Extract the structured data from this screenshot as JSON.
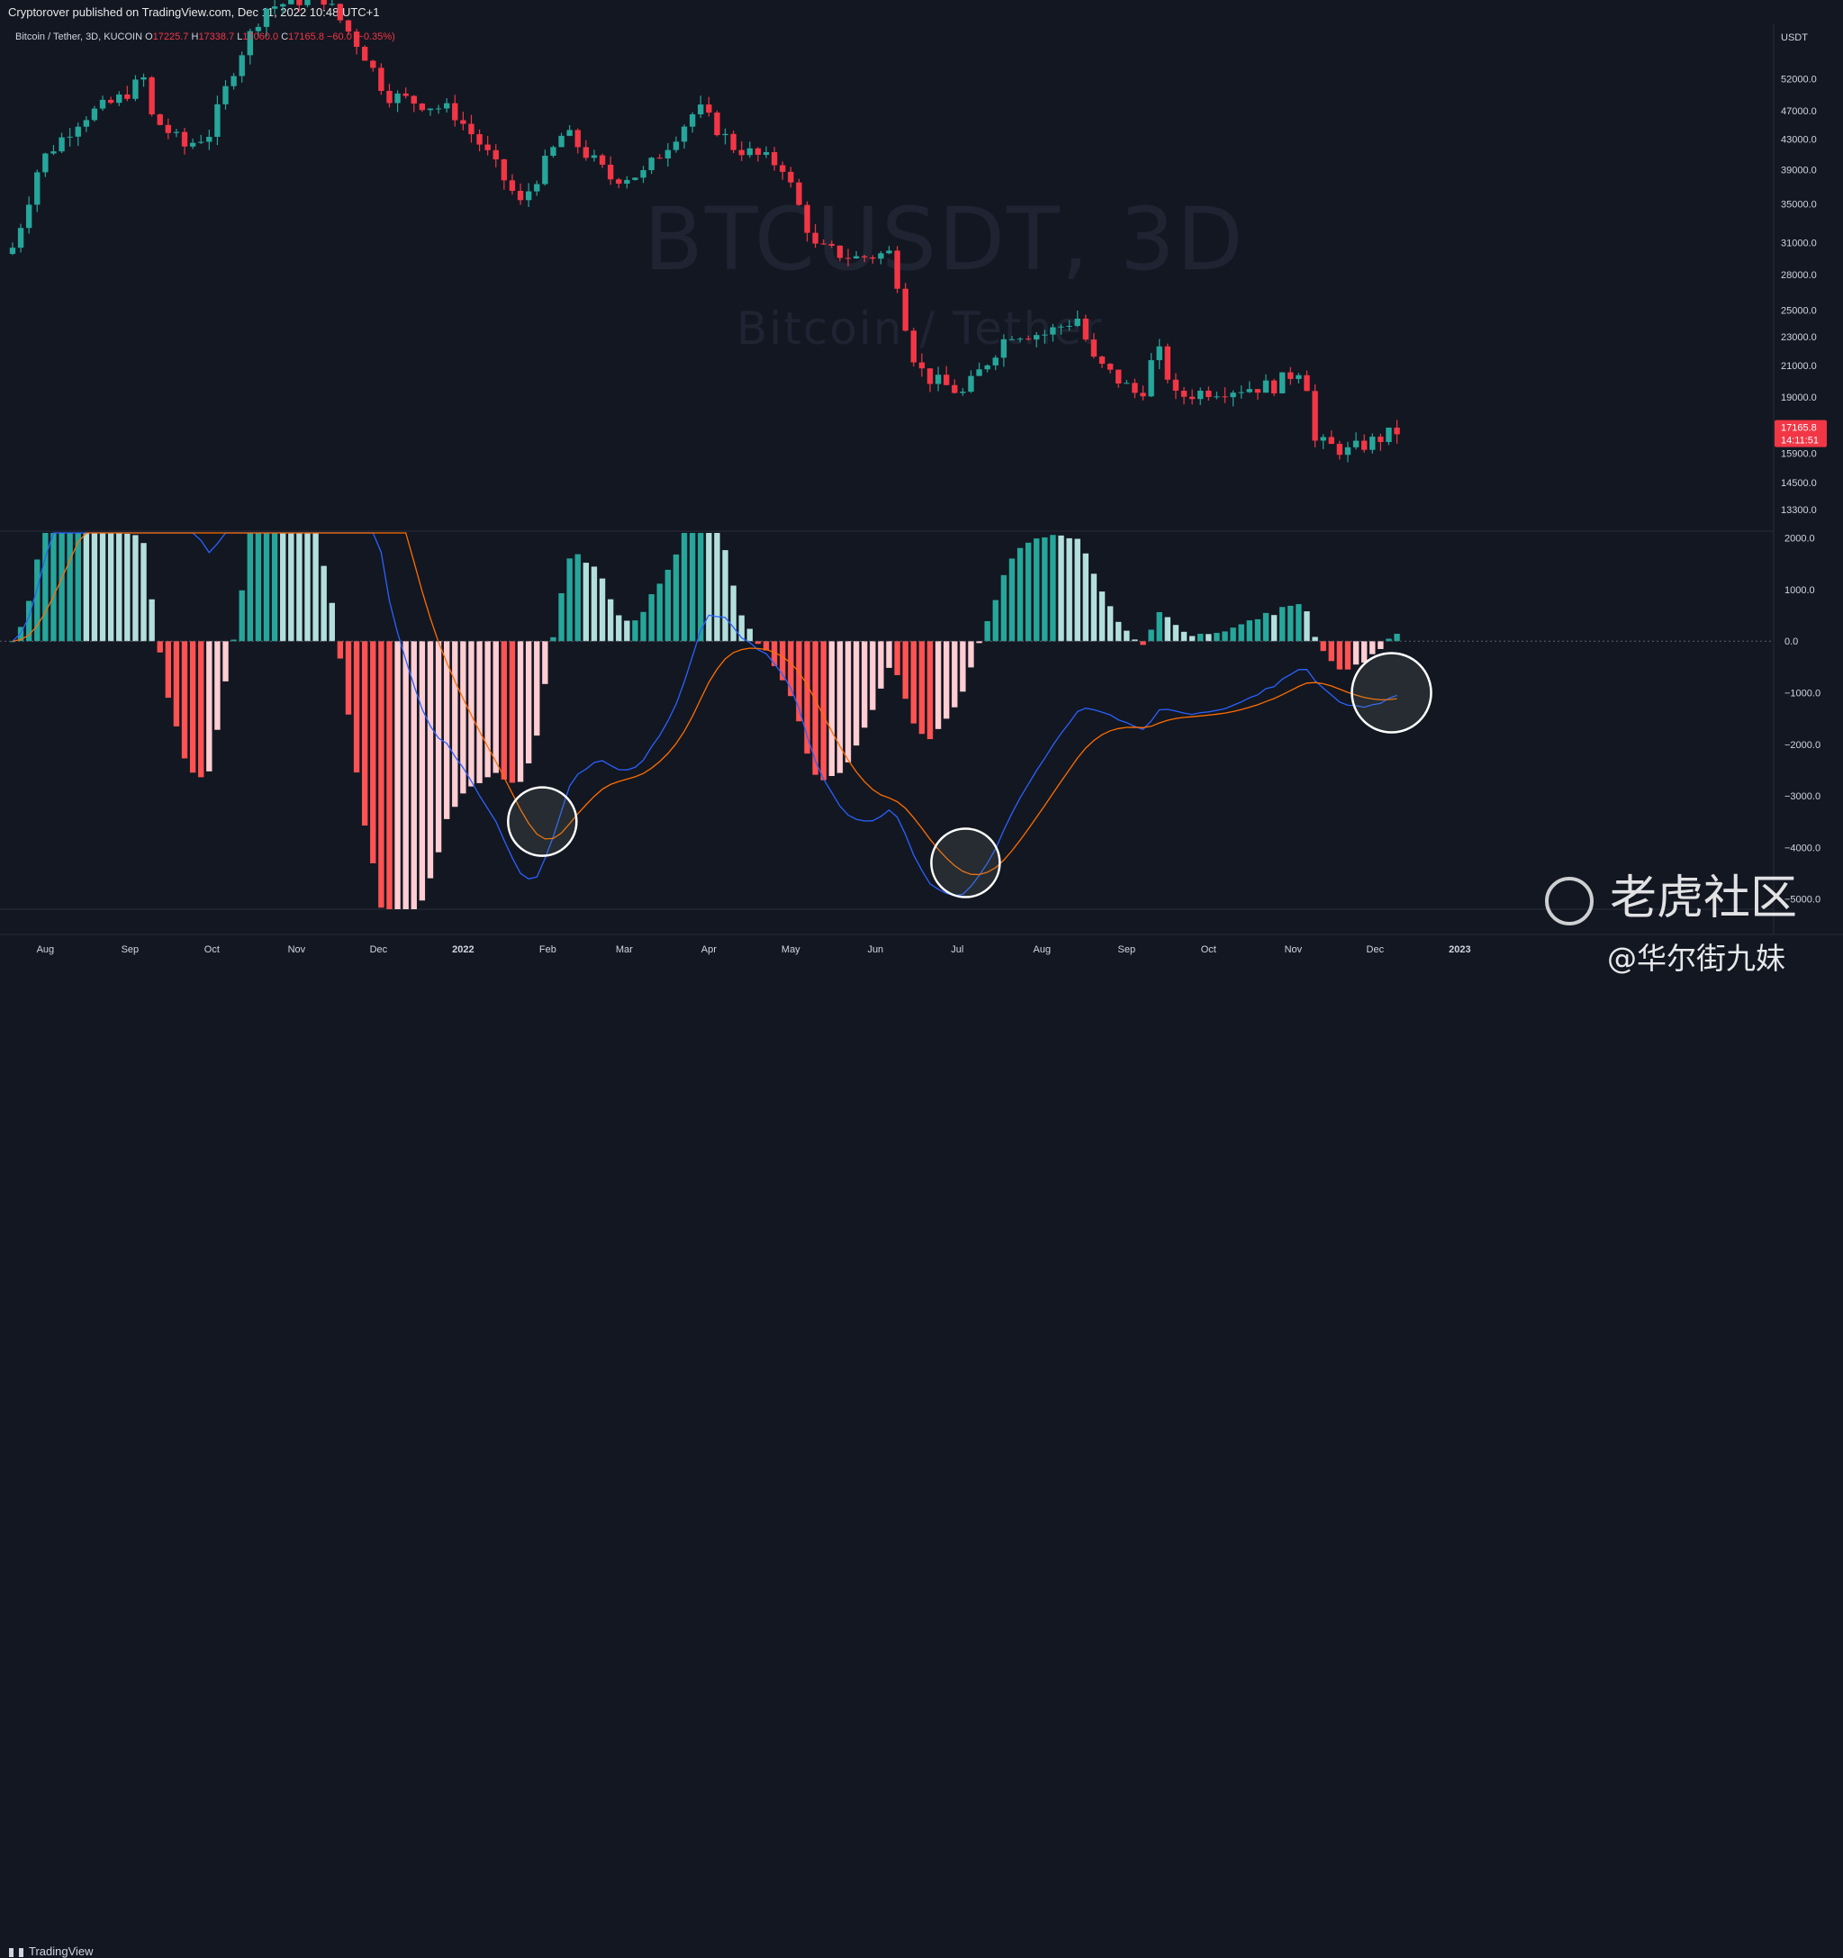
{
  "header": {
    "published_text": "Cryptorover published on TradingView.com, Dec 11, 2022 10:48 UTC+1"
  },
  "legend": {
    "symbol": "Bitcoin / Tether, 3D, KUCOIN",
    "o_label": "O",
    "o_value": "17225.7",
    "h_label": "H",
    "h_value": "17338.7",
    "l_label": "L",
    "l_value": "17060.0",
    "c_label": "C",
    "c_value": "17165.8",
    "change": "−60.0 (−0.35%)"
  },
  "watermark": {
    "symbol": "BTCUSDT, 3D",
    "name": "Bitcoin / Tether"
  },
  "price_axis": {
    "currency": "USDT",
    "current_price": "17165.8",
    "countdown": "14:11:51"
  },
  "footer": {
    "brand": "TradingView",
    "wm_cn": "老虎社区",
    "wm_handle": "@华尔街九妹"
  },
  "colors": {
    "background": "#131722",
    "up": "#26a69a",
    "down": "#f23645",
    "hist_up_strong": "#26a69a",
    "hist_up_weak": "#b2dfdb",
    "hist_down_strong": "#ff5252",
    "hist_down_weak": "#ffcdd2",
    "macd_line": "#2962ff",
    "signal_line": "#ff6d00"
  },
  "chart_data": [
    {
      "type": "candlestick",
      "title": "",
      "scale": "log",
      "ylim": [
        12500,
        62000
      ],
      "y_ticks": [
        52000,
        47000,
        43000,
        39000,
        35000,
        31000,
        28000,
        25000,
        23000,
        21000,
        19000,
        15900,
        14500,
        13300
      ],
      "x_ticks": [
        "Aug",
        "Sep",
        "Oct",
        "Nov",
        "Dec",
        "2022",
        "Feb",
        "Mar",
        "Apr",
        "May",
        "Jun",
        "Jul",
        "Aug",
        "Sep",
        "Oct",
        "Nov",
        "Dec",
        "2023"
      ],
      "anchors": [
        {
          "date": "2021-07-20",
          "close": 30500
        },
        {
          "date": "2021-07-24",
          "close": 33700
        },
        {
          "date": "2021-07-30",
          "close": 40000
        },
        {
          "date": "2021-08-14",
          "close": 46000
        },
        {
          "date": "2021-08-27",
          "close": 48500
        },
        {
          "date": "2021-09-06",
          "close": 52000
        },
        {
          "date": "2021-09-08",
          "close": 46500
        },
        {
          "date": "2021-09-21",
          "close": 42000
        },
        {
          "date": "2021-09-30",
          "close": 43800
        },
        {
          "date": "2021-10-10",
          "close": 55000
        },
        {
          "date": "2021-10-20",
          "close": 65000
        },
        {
          "date": "2021-11-10",
          "close": 68000
        },
        {
          "date": "2021-11-25",
          "close": 57000
        },
        {
          "date": "2021-12-04",
          "close": 49500
        },
        {
          "date": "2021-12-28",
          "close": 47000
        },
        {
          "date": "2022-01-08",
          "close": 42000
        },
        {
          "date": "2022-01-22",
          "close": 35000
        },
        {
          "date": "2022-02-07",
          "close": 44000
        },
        {
          "date": "2022-02-24",
          "close": 38000
        },
        {
          "date": "2022-03-08",
          "close": 38500
        },
        {
          "date": "2022-03-28",
          "close": 47500
        },
        {
          "date": "2022-04-10",
          "close": 42000
        },
        {
          "date": "2022-04-28",
          "close": 39500
        },
        {
          "date": "2022-05-10",
          "close": 30500
        },
        {
          "date": "2022-05-25",
          "close": 29500
        },
        {
          "date": "2022-06-07",
          "close": 30000
        },
        {
          "date": "2022-06-14",
          "close": 22000
        },
        {
          "date": "2022-06-19",
          "close": 20300
        },
        {
          "date": "2022-07-03",
          "close": 19200
        },
        {
          "date": "2022-07-20",
          "close": 23300
        },
        {
          "date": "2022-08-02",
          "close": 23200
        },
        {
          "date": "2022-08-14",
          "close": 24400
        },
        {
          "date": "2022-08-20",
          "close": 21300
        },
        {
          "date": "2022-09-06",
          "close": 19000
        },
        {
          "date": "2022-09-12",
          "close": 22300
        },
        {
          "date": "2022-09-19",
          "close": 19000
        },
        {
          "date": "2022-10-01",
          "close": 19400
        },
        {
          "date": "2022-10-25",
          "close": 19700
        },
        {
          "date": "2022-11-05",
          "close": 21000
        },
        {
          "date": "2022-11-09",
          "close": 16500
        },
        {
          "date": "2022-11-21",
          "close": 16000
        },
        {
          "date": "2022-12-11",
          "close": 17165.8
        }
      ]
    },
    {
      "type": "macd",
      "title": "",
      "ylim": [
        -5200,
        2100
      ],
      "y_ticks": [
        2000,
        1000,
        0.0,
        -1000,
        -2000,
        -3000,
        -4000,
        -5000
      ],
      "macd_fast": 12,
      "macd_slow": 26,
      "signal": 9,
      "series": [
        {
          "type": "histogram"
        },
        {
          "type": "line",
          "role": "macd"
        },
        {
          "type": "line",
          "role": "signal"
        }
      ],
      "highlights": [
        {
          "date": "2022-01-30",
          "value": -3500
        },
        {
          "date": "2022-07-04",
          "value": -4300
        },
        {
          "date": "2022-12-07",
          "value": -1000
        }
      ]
    }
  ]
}
